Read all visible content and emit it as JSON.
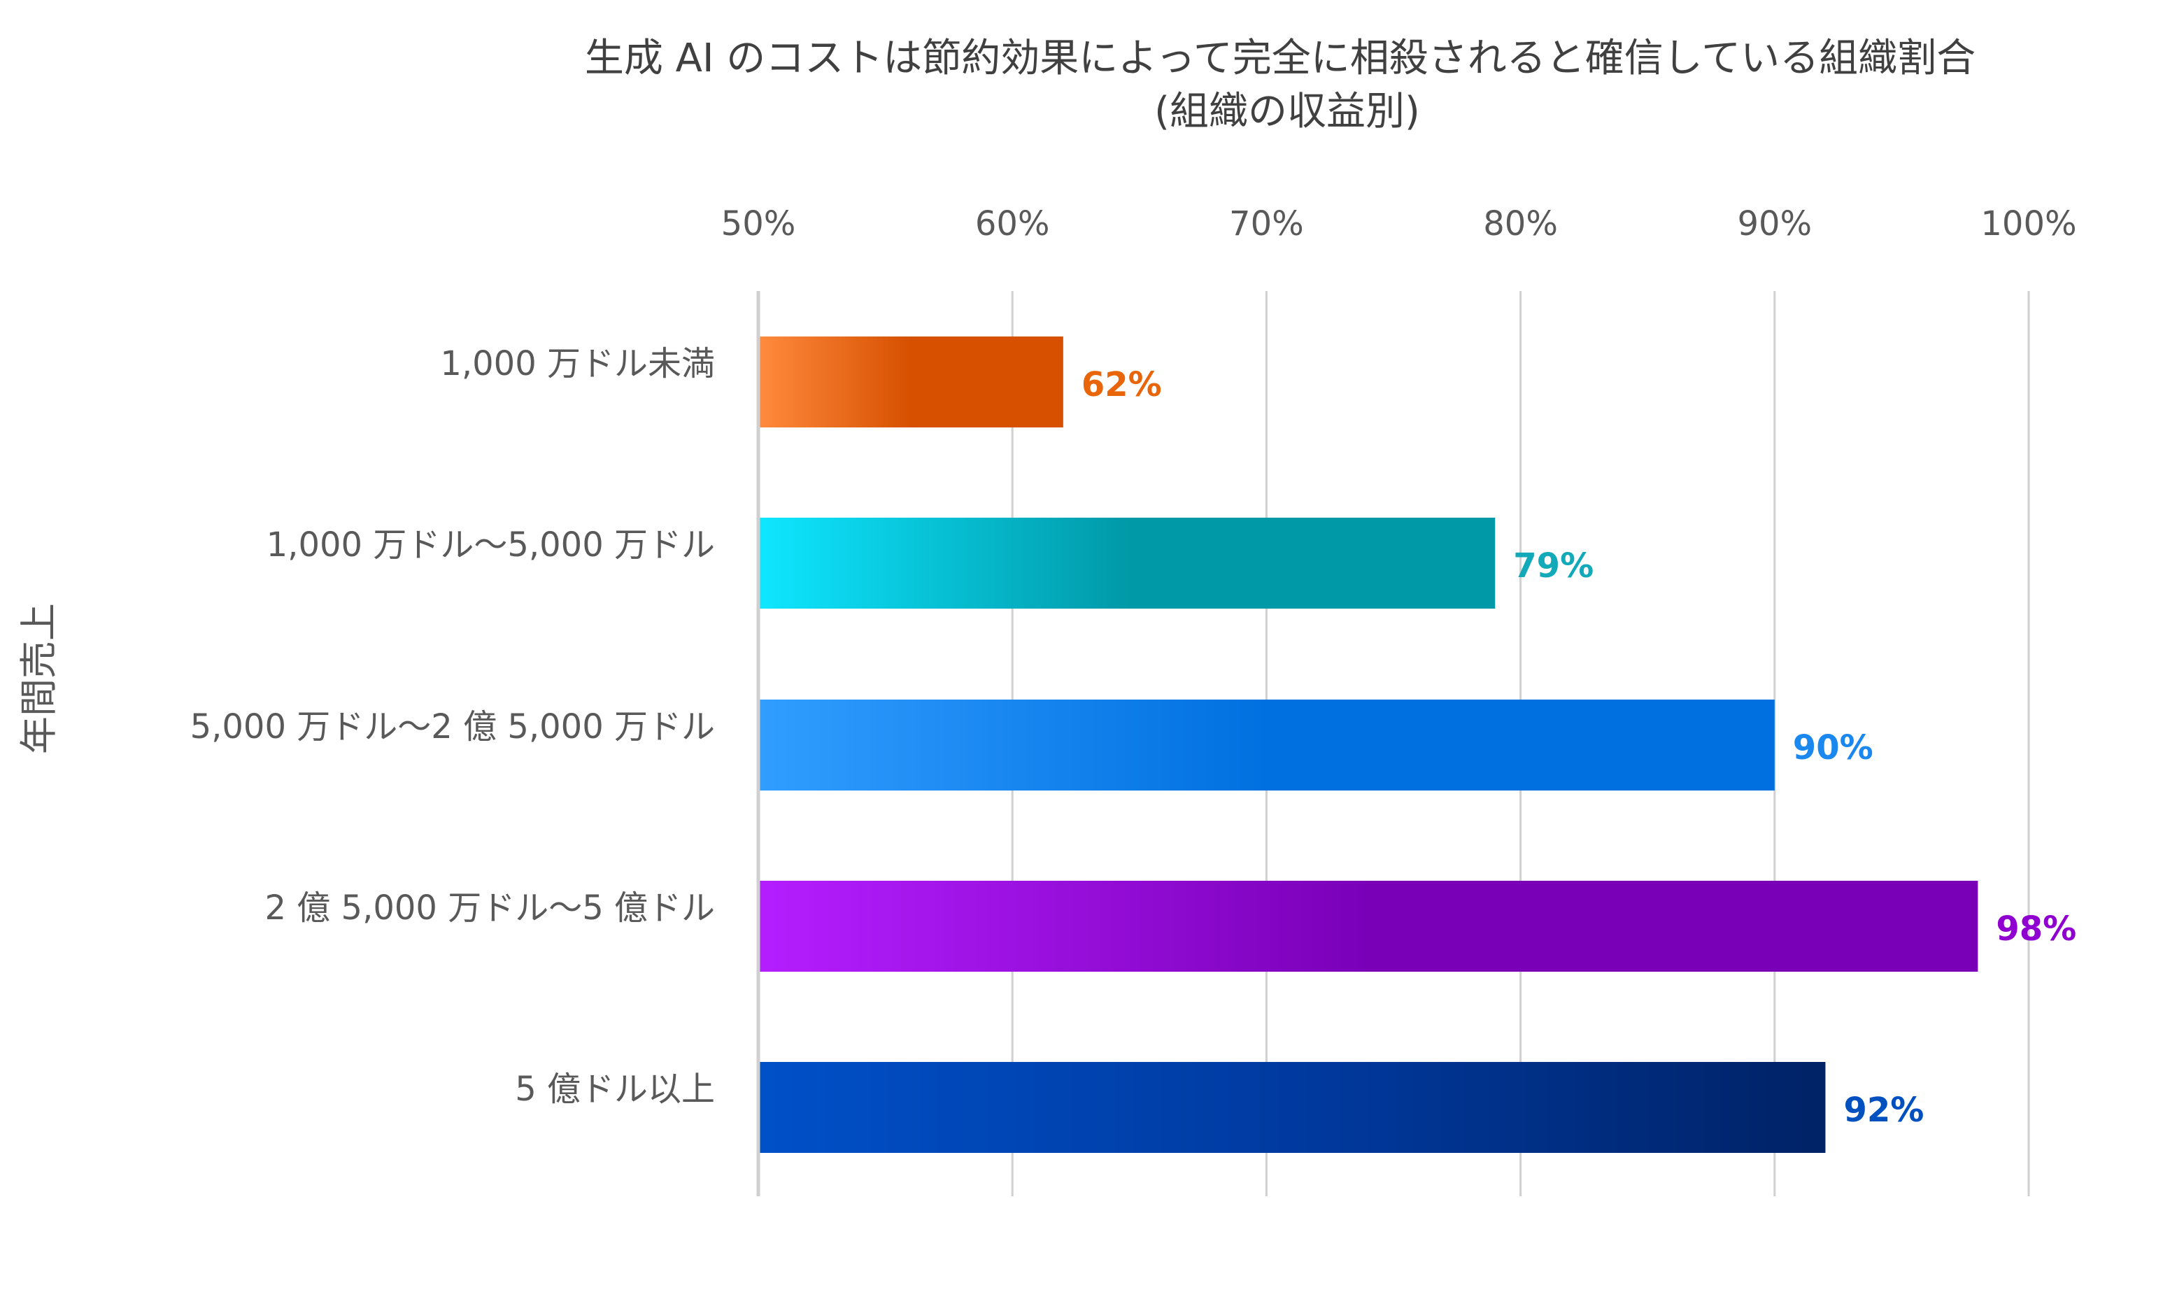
{
  "chart_data": {
    "type": "bar",
    "orientation": "horizontal",
    "title": "生成 AI のコストは節約効果によって完全に相殺されると確信している組織割合",
    "subtitle": "(組織の収益別)",
    "xlabel": "",
    "ylabel": "年間売上",
    "xlim": [
      50,
      100
    ],
    "x_ticks": [
      "50%",
      "60%",
      "70%",
      "80%",
      "90%",
      "100%"
    ],
    "x_tick_values": [
      50,
      60,
      70,
      80,
      90,
      100
    ],
    "grid": true,
    "categories": [
      "1,000 万ドル未満",
      "1,000 万ドル～5,000 万ドル",
      "5,000 万ドル～2 億 5,000 万ドル",
      "2 億 5,000 万ドル～5 億ドル",
      "5 億ドル以上"
    ],
    "values": [
      62,
      79,
      90,
      98,
      92
    ],
    "data_labels": [
      "62%",
      "79%",
      "90%",
      "98%",
      "92%"
    ],
    "colors": [
      {
        "start": "#ff8a3d",
        "end": "#d65000",
        "label": "#e8650a"
      },
      {
        "start": "#0ee6ff",
        "end": "#0099a8",
        "label": "#12a9b8"
      },
      {
        "start": "#309dff",
        "end": "#0070e0",
        "label": "#1b88f0"
      },
      {
        "start": "#b41eff",
        "end": "#7a00b8",
        "label": "#8f00d0"
      },
      {
        "start": "#0050c8",
        "end": "#002468",
        "label": "#0050c0"
      }
    ]
  }
}
